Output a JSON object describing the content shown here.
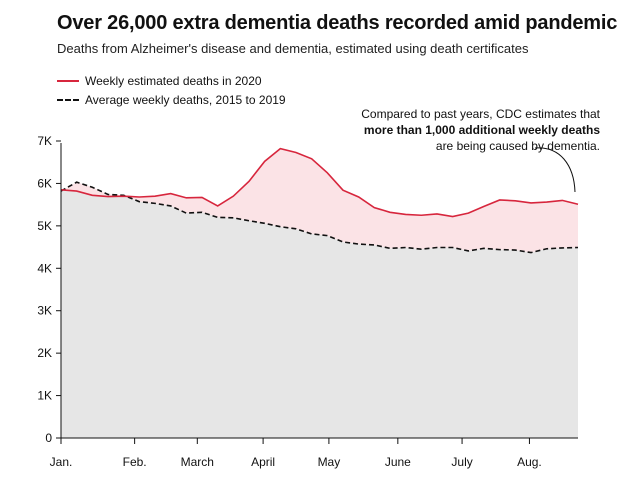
{
  "header": {
    "title": "Over 26,000 extra dementia deaths recorded amid pandemic",
    "subtitle": "Deaths from Alzheimer's disease and dementia, estimated using death certificates"
  },
  "legend": {
    "items": [
      {
        "label": "Weekly estimated deaths in 2020",
        "style": "solid",
        "color": "#d7263d"
      },
      {
        "label": "Average weekly deaths, 2015 to 2019",
        "style": "dashed",
        "color": "#111111"
      }
    ]
  },
  "annotation": {
    "line1": "Compared to past years, CDC estimates that",
    "bold": "more than 1,000 additional weekly deaths",
    "line3": "are being caused by dementia."
  },
  "colors": {
    "excess_fill": "#fbe3e6",
    "baseline_fill": "#e6e6e6",
    "line_2020": "#d7263d",
    "line_avg": "#111111"
  },
  "chart_data": {
    "type": "area",
    "title": "Over 26,000 extra dementia deaths recorded amid pandemic",
    "subtitle": "Deaths from Alzheimer's disease and dementia, estimated using death certificates",
    "xlabel": "",
    "ylabel": "",
    "ylim": [
      0,
      7000
    ],
    "yticks": [
      0,
      1000,
      2000,
      3000,
      4000,
      5000,
      6000,
      7000
    ],
    "ytick_labels": [
      "0",
      "1K",
      "2K",
      "3K",
      "4K",
      "5K",
      "6K",
      "7K"
    ],
    "x_tick_labels": [
      "Jan.",
      "Feb.",
      "March",
      "April",
      "May",
      "June",
      "July",
      "Aug."
    ],
    "x_tick_weeks": [
      0,
      4.7,
      8.7,
      12.9,
      17.1,
      21.5,
      25.6,
      29.9
    ],
    "weeks": 34,
    "grid": false,
    "legend_position": "top-left",
    "series": [
      {
        "name": "Weekly estimated deaths in 2020",
        "style": "solid",
        "values": [
          5850,
          5820,
          5720,
          5690,
          5700,
          5680,
          5700,
          5760,
          5660,
          5670,
          5470,
          5700,
          6050,
          6520,
          6820,
          6730,
          6580,
          6250,
          5840,
          5680,
          5430,
          5320,
          5270,
          5250,
          5280,
          5220,
          5300,
          5460,
          5610,
          5590,
          5540,
          5560,
          5600,
          5510
        ]
      },
      {
        "name": "Average weekly deaths, 2015 to 2019",
        "style": "dashed",
        "values": [
          5820,
          6030,
          5910,
          5740,
          5720,
          5570,
          5530,
          5470,
          5300,
          5320,
          5200,
          5190,
          5120,
          5060,
          4980,
          4930,
          4810,
          4770,
          4620,
          4570,
          4550,
          4470,
          4490,
          4450,
          4490,
          4490,
          4410,
          4470,
          4440,
          4430,
          4370,
          4460,
          4480,
          4490
        ]
      }
    ]
  }
}
